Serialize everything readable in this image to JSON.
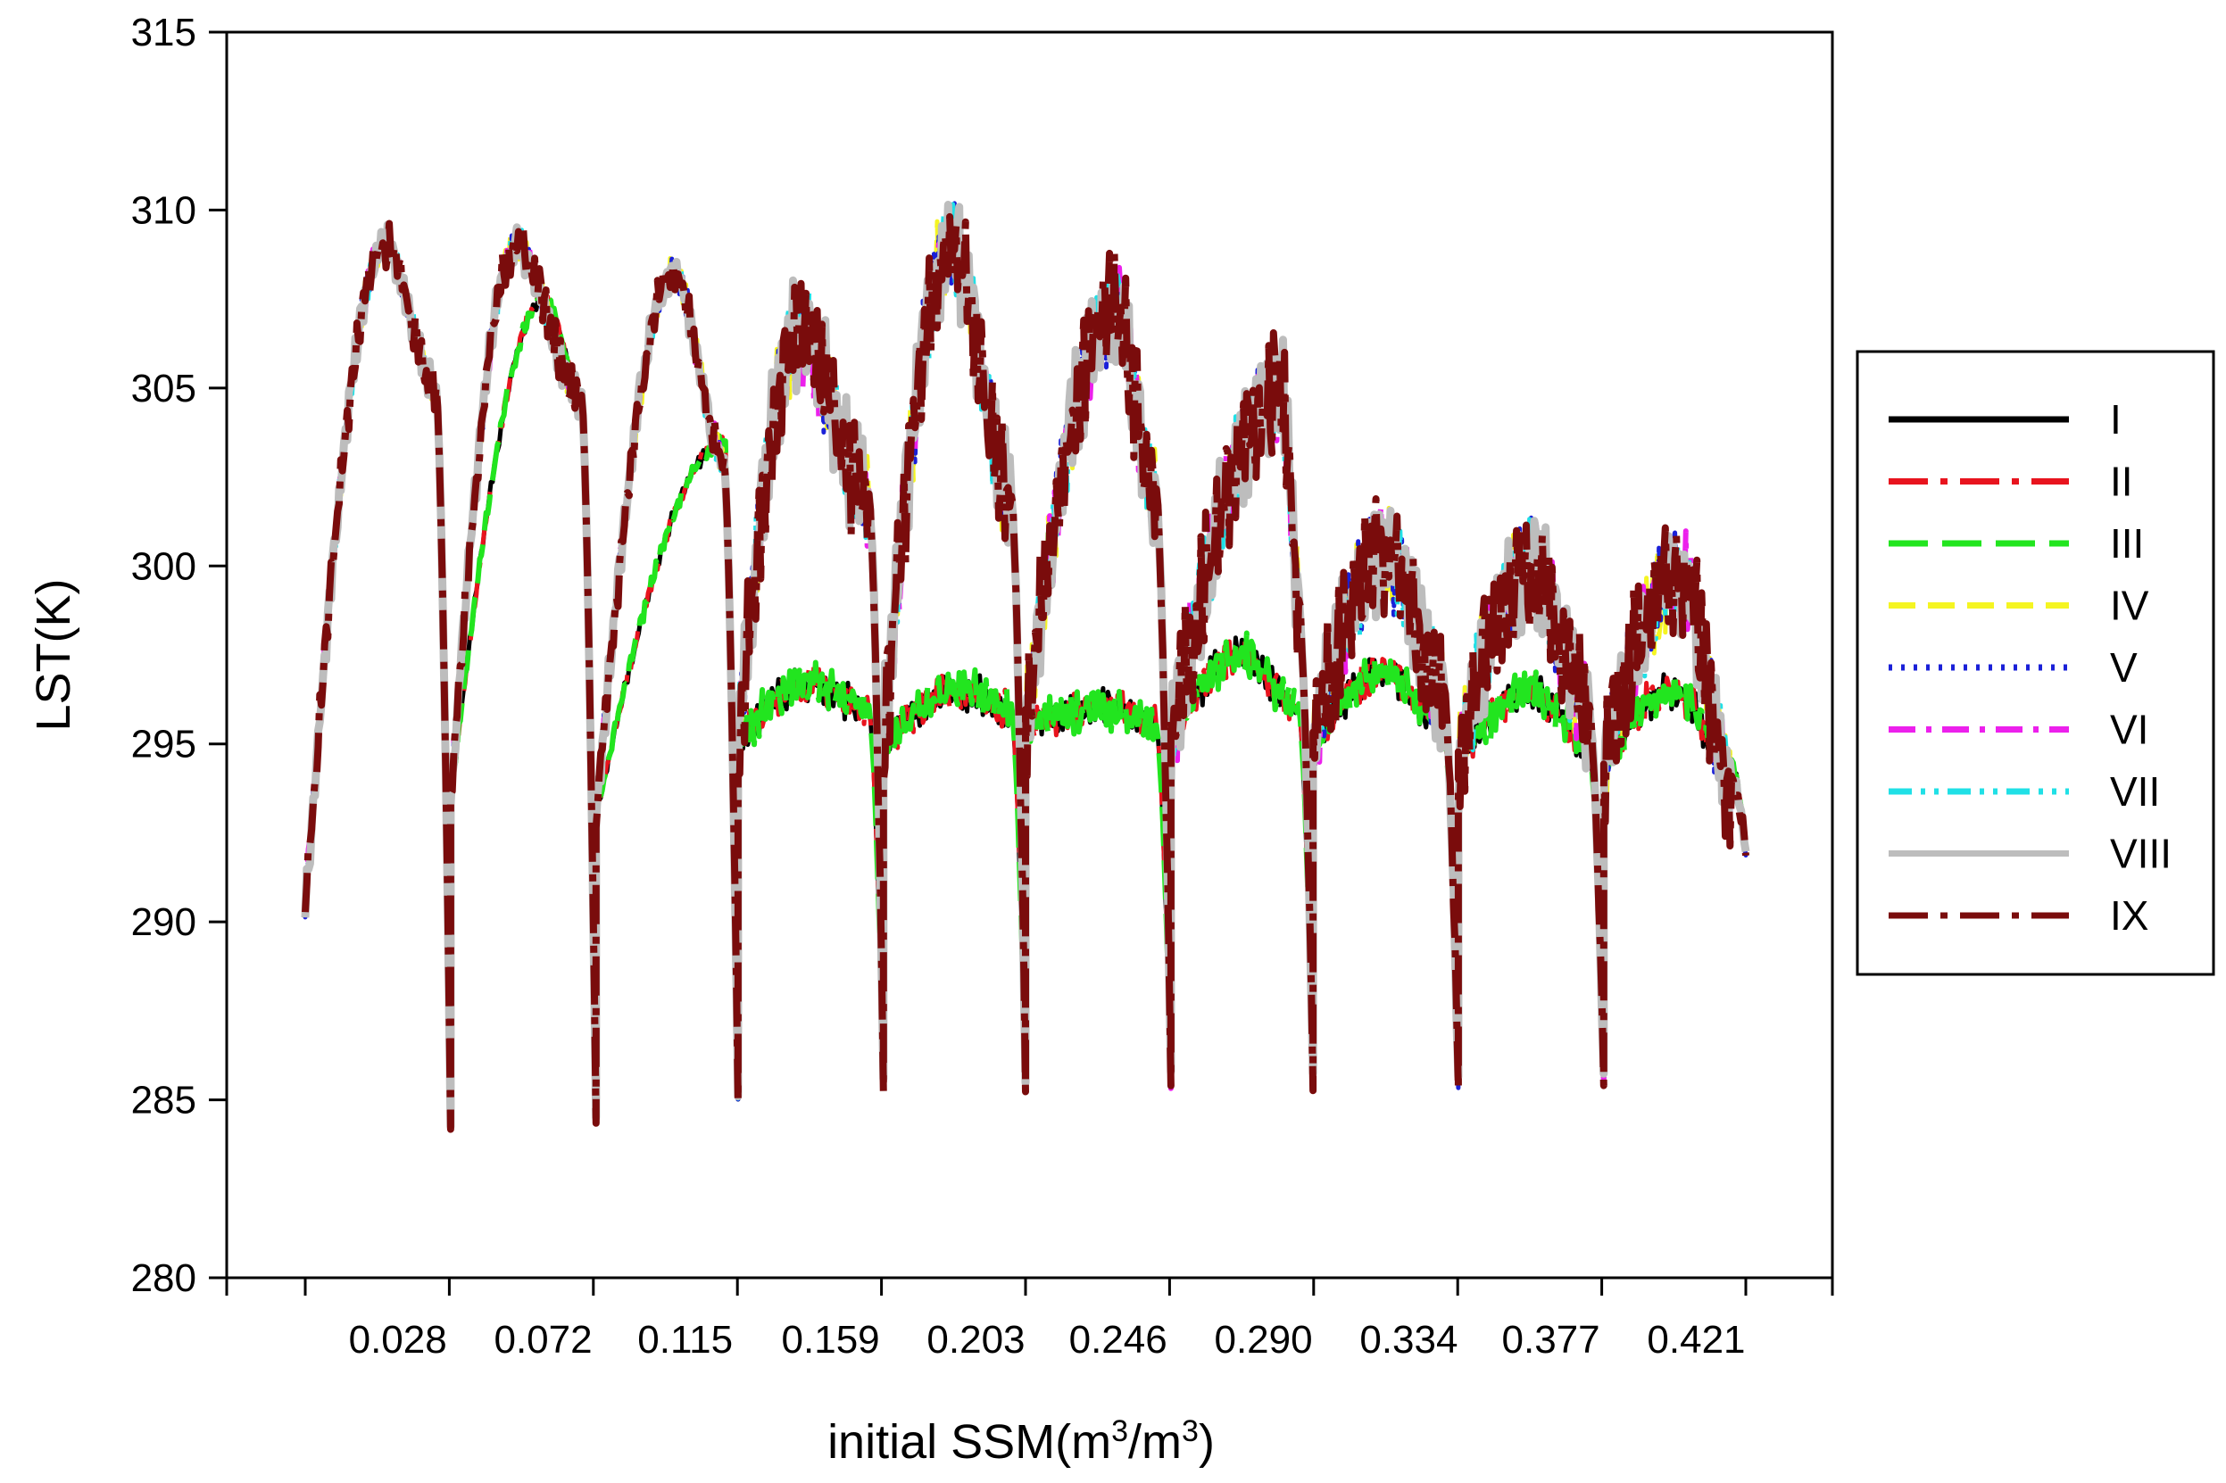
{
  "chart_data": {
    "type": "line",
    "xlabel": "initial SSM(m3/m3)",
    "xlabel_parts": {
      "main": "initial SSM(m",
      "sup1": "3",
      "mid": "/m",
      "sup2": "3",
      "end": ")"
    },
    "ylabel": "LST(K)",
    "ylim": [
      280,
      315
    ],
    "yticks": [
      "280",
      "285",
      "290",
      "295",
      "300",
      "305",
      "310",
      "315"
    ],
    "xlim": [
      -0.03,
      0.47
    ],
    "x_tick_labels": [
      "0.028",
      "0.072",
      "0.115",
      "0.159",
      "0.203",
      "0.246",
      "0.290",
      "0.334",
      "0.377",
      "0.421"
    ],
    "x_label_values": [
      0.028,
      0.072,
      0.115,
      0.159,
      0.203,
      0.246,
      0.29,
      0.334,
      0.377,
      0.421
    ],
    "grid": false,
    "legend_position": "right",
    "series": [
      {
        "name": "I",
        "color": "#000000",
        "dash": "solid"
      },
      {
        "name": "II",
        "color": "#e8141e",
        "dash": "long-dash-dot"
      },
      {
        "name": "III",
        "color": "#22e51f",
        "dash": "long-dash"
      },
      {
        "name": "IV",
        "color": "#f5f522",
        "dash": "dash"
      },
      {
        "name": "V",
        "color": "#1a20d8",
        "dash": "dot"
      },
      {
        "name": "VI",
        "color": "#ec20ec",
        "dash": "dash-dot"
      },
      {
        "name": "VII",
        "color": "#20e0e6",
        "dash": "dash-dot-dot"
      },
      {
        "name": "VIII",
        "color": "#bdbdbd",
        "dash": "solid"
      },
      {
        "name": "IX",
        "color": "#7a0c0c",
        "dash": "long-dash-dot"
      }
    ],
    "cycles": [
      {
        "x_start": 0.0,
        "x_end": 0.044,
        "start": 290.5,
        "dip": 284.2,
        "low": {
          "peak": 309.0,
          "peak_pos": 0.55,
          "shoulder": 305.0
        },
        "high": {
          "peak": 309.0,
          "peak_pos": 0.55,
          "shoulder": 305.0
        }
      },
      {
        "x_start": 0.044,
        "x_end": 0.088,
        "start": 293.5,
        "dip": 284.4,
        "low": {
          "peak": 307.5,
          "peak_pos": 0.65,
          "shoulder": 304.8
        },
        "high": {
          "peak": 309.0,
          "peak_pos": 0.45,
          "shoulder": 304.8
        }
      },
      {
        "x_start": 0.088,
        "x_end": 0.131,
        "start": 293.0,
        "dip": 285.0,
        "low": {
          "peak": 303.5,
          "peak_pos": 0.92,
          "shoulder": 302.5
        },
        "high": {
          "peak": 308.2,
          "peak_pos": 0.55,
          "shoulder": 303.0
        }
      },
      {
        "x_start": 0.131,
        "x_end": 0.175,
        "start": 295.0,
        "dip": 285.5,
        "low": {
          "peak": 296.7,
          "peak_pos": 0.5,
          "shoulder": 296.0
        },
        "high": {
          "peak": 306.5,
          "peak_pos": 0.42,
          "shoulder": 302.0
        }
      },
      {
        "x_start": 0.175,
        "x_end": 0.218,
        "start": 295.0,
        "dip": 285.5,
        "low": {
          "peak": 296.5,
          "peak_pos": 0.55,
          "shoulder": 296.0
        },
        "high": {
          "peak": 309.0,
          "peak_pos": 0.48,
          "shoulder": 302.0
        }
      },
      {
        "x_start": 0.218,
        "x_end": 0.262,
        "start": 295.5,
        "dip": 285.5,
        "low": {
          "peak": 296.0,
          "peak_pos": 0.6,
          "shoulder": 295.5
        },
        "high": {
          "peak": 307.2,
          "peak_pos": 0.62,
          "shoulder": 302.0
        }
      },
      {
        "x_start": 0.262,
        "x_end": 0.305,
        "start": 295.0,
        "dip": 285.5,
        "low": {
          "peak": 297.5,
          "peak_pos": 0.5,
          "shoulder": 296.0
        },
        "high": {
          "peak": 304.8,
          "peak_pos": 0.78,
          "shoulder": 299.0
        }
      },
      {
        "x_start": 0.305,
        "x_end": 0.349,
        "start": 295.0,
        "dip": 285.5,
        "low": {
          "peak": 297.0,
          "peak_pos": 0.5,
          "shoulder": 295.5
        },
        "high": {
          "peak": 300.3,
          "peak_pos": 0.5,
          "shoulder": 296.5
        }
      },
      {
        "x_start": 0.349,
        "x_end": 0.393,
        "start": 294.5,
        "dip": 285.5,
        "low": {
          "peak": 296.5,
          "peak_pos": 0.5,
          "shoulder": 295.0
        },
        "high": {
          "peak": 300.0,
          "peak_pos": 0.5,
          "shoulder": 296.0
        }
      },
      {
        "x_start": 0.393,
        "x_end": 0.436,
        "start": 294.5,
        "dip": 292.0,
        "low": {
          "peak": 296.5,
          "peak_pos": 0.5,
          "shoulder": 294.5
        },
        "high": {
          "peak": 299.7,
          "peak_pos": 0.55,
          "shoulder": 294.0
        }
      }
    ]
  }
}
